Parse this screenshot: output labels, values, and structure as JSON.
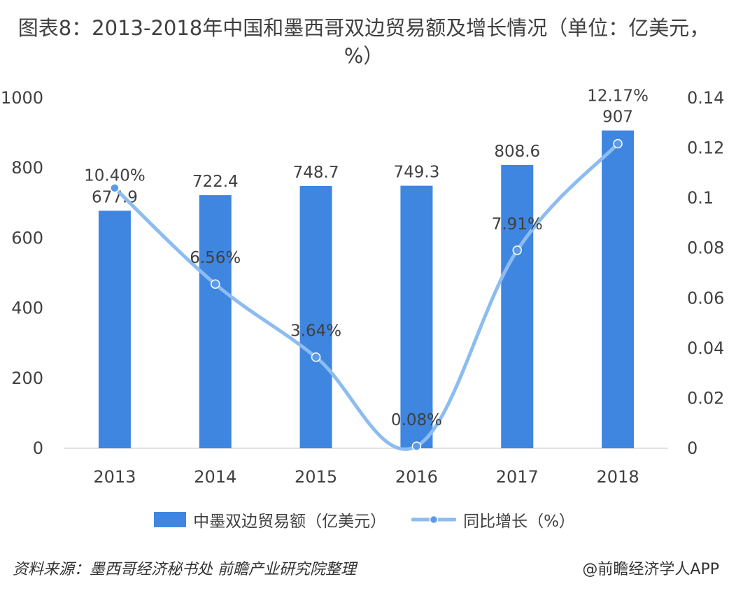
{
  "title": "图表8：2013-2018年中国和墨西哥双边贸易额及增长情况（单位：亿美元，%）",
  "chart_data": {
    "type": "bar+line",
    "categories": [
      "2013",
      "2014",
      "2015",
      "2016",
      "2017",
      "2018"
    ],
    "series": [
      {
        "name": "中墨双边贸易额（亿美元）",
        "type": "bar",
        "axis": "left",
        "values": [
          677.9,
          722.4,
          748.7,
          749.3,
          808.6,
          907
        ],
        "labels": [
          "677.9",
          "722.4",
          "748.7",
          "749.3",
          "808.6",
          "907"
        ],
        "color": "#3f86e0"
      },
      {
        "name": "同比增长（%）",
        "type": "line",
        "axis": "right",
        "values": [
          0.104,
          0.0656,
          0.0364,
          0.0008,
          0.0791,
          0.1217
        ],
        "labels": [
          "10.40%",
          "6.56%",
          "3.64%",
          "0.08%",
          "7.91%",
          "12.17%"
        ],
        "color": "#8cbcf0"
      }
    ],
    "y_left": {
      "min": 0,
      "max": 1000,
      "ticks": [
        "0",
        "200",
        "400",
        "600",
        "800",
        "1000"
      ]
    },
    "y_right": {
      "min": 0,
      "max": 0.14,
      "ticks": [
        "0",
        "0.02",
        "0.04",
        "0.06",
        "0.08",
        "0.1",
        "0.12",
        "0.14"
      ]
    },
    "grid": false,
    "legend_position": "bottom"
  },
  "legend": {
    "bar_label": "中墨双边贸易额（亿美元）",
    "line_label": "同比增长（%）"
  },
  "footer": {
    "source": "资料来源：墨西哥经济秘书处 前瞻产业研究院整理",
    "credit": "@前瞻经济学人APP"
  }
}
